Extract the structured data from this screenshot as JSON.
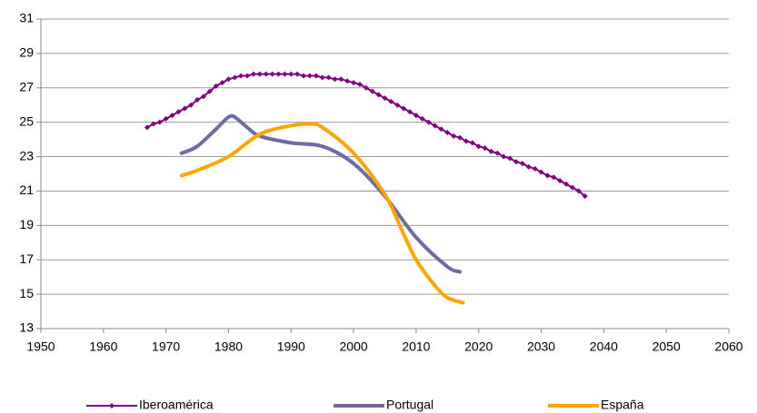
{
  "chart_data": {
    "type": "line",
    "xlim": [
      1950,
      2060
    ],
    "xticks": [
      1950,
      1960,
      1970,
      1980,
      1990,
      2000,
      2010,
      2020,
      2030,
      2040,
      2050,
      2060
    ],
    "ylim": [
      13,
      31
    ],
    "yticks": [
      13,
      15,
      17,
      19,
      21,
      23,
      25,
      27,
      29,
      31
    ],
    "grid": true,
    "series": [
      {
        "name": "Iberoamérica",
        "color": "#800080",
        "markers": true,
        "x": [
          1967,
          1968,
          1969,
          1970,
          1971,
          1972,
          1973,
          1974,
          1975,
          1976,
          1977,
          1978,
          1979,
          1980,
          1981,
          1982,
          1983,
          1984,
          1985,
          1986,
          1987,
          1988,
          1989,
          1990,
          1991,
          1992,
          1993,
          1994,
          1995,
          1996,
          1997,
          1998,
          1999,
          2000,
          2001,
          2002,
          2003,
          2004,
          2005,
          2006,
          2007,
          2008,
          2009,
          2010,
          2011,
          2012,
          2013,
          2014,
          2015,
          2016,
          2017,
          2018,
          2019,
          2020,
          2021,
          2022,
          2023,
          2024,
          2025,
          2026,
          2027,
          2028,
          2029,
          2030,
          2031,
          2032,
          2033,
          2034,
          2035,
          2036,
          2037
        ],
        "values": [
          24.7,
          24.9,
          25.0,
          25.2,
          25.4,
          25.6,
          25.8,
          26.0,
          26.3,
          26.5,
          26.8,
          27.1,
          27.3,
          27.5,
          27.6,
          27.7,
          27.7,
          27.8,
          27.8,
          27.8,
          27.8,
          27.8,
          27.8,
          27.8,
          27.8,
          27.7,
          27.7,
          27.7,
          27.6,
          27.6,
          27.5,
          27.5,
          27.4,
          27.3,
          27.2,
          27.0,
          26.8,
          26.6,
          26.4,
          26.2,
          26.0,
          25.8,
          25.6,
          25.4,
          25.2,
          25.0,
          24.8,
          24.6,
          24.4,
          24.2,
          24.1,
          23.9,
          23.8,
          23.6,
          23.5,
          23.3,
          23.2,
          23.0,
          22.9,
          22.7,
          22.6,
          22.4,
          22.3,
          22.1,
          21.9,
          21.8,
          21.6,
          21.4,
          21.2,
          21.0,
          20.7
        ]
      },
      {
        "name": "Portugal",
        "color": "#6b6ba6",
        "markers": false,
        "x": [
          1972.5,
          1975,
          1978,
          1980,
          1981,
          1983,
          1985,
          1990,
          1995,
          2000,
          2005,
          2010,
          2015,
          2017
        ],
        "values": [
          23.2,
          23.6,
          24.6,
          25.3,
          25.3,
          24.7,
          24.2,
          23.8,
          23.6,
          22.6,
          20.7,
          18.3,
          16.6,
          16.3
        ]
      },
      {
        "name": "España",
        "color": "#ffa500",
        "markers": false,
        "x": [
          1972.5,
          1975,
          1980,
          1985,
          1990,
          1993,
          1995,
          2000,
          2005,
          2008,
          2010,
          2013,
          2015,
          2017.5
        ],
        "values": [
          21.9,
          22.2,
          23.0,
          24.3,
          24.8,
          24.9,
          24.7,
          23.2,
          20.8,
          18.5,
          17.0,
          15.5,
          14.8,
          14.5
        ]
      }
    ]
  }
}
